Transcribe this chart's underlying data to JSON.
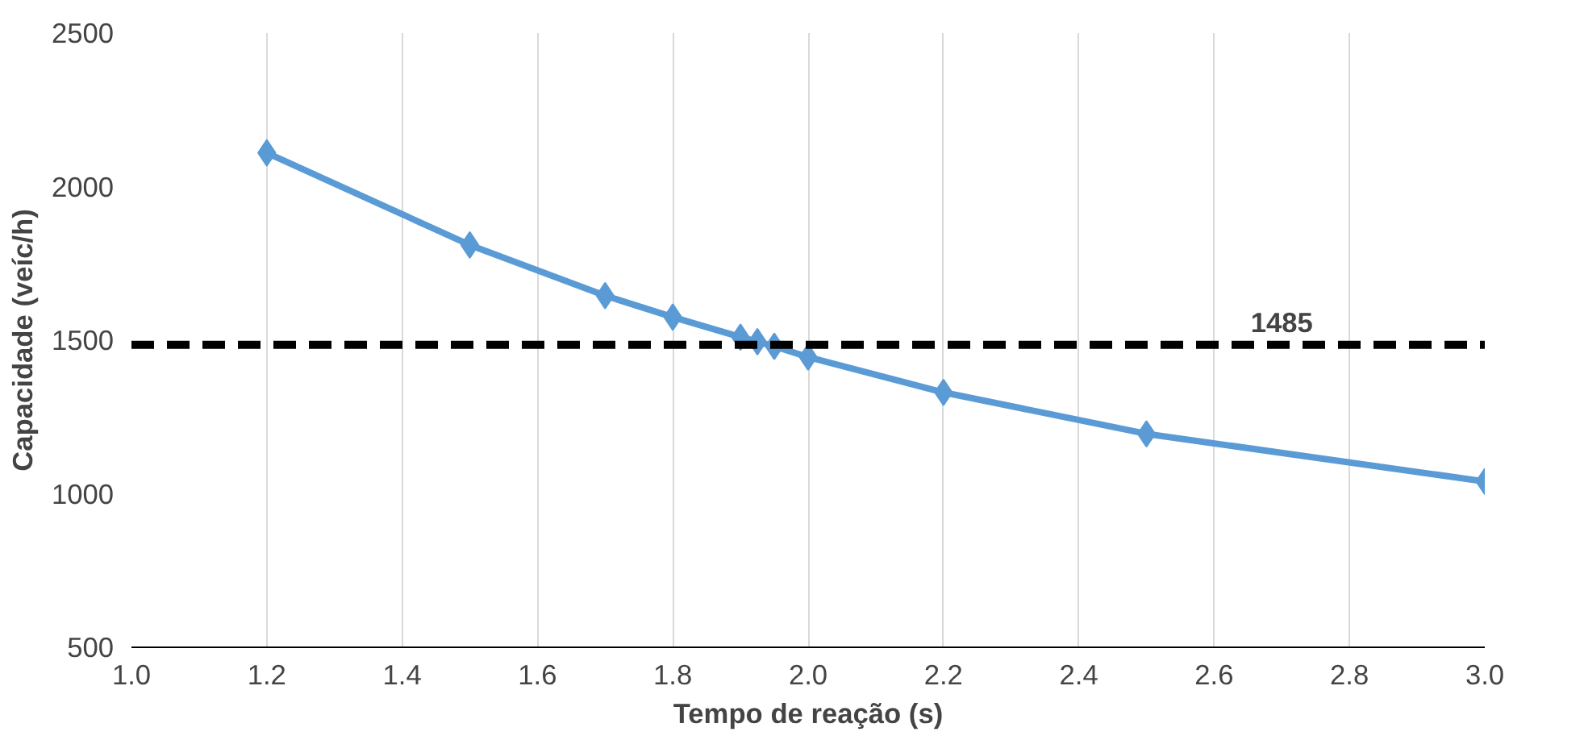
{
  "chart_data": {
    "type": "line",
    "xlabel": "Tempo de reação (s)",
    "ylabel": "Capacidade (veíc/h)",
    "x": [
      1.2,
      1.5,
      1.7,
      1.8,
      1.9,
      1.925,
      1.95,
      2.0,
      2.2,
      2.5,
      3.0
    ],
    "series": [
      {
        "color": "#5b9bd5",
        "values": [
          2110,
          1810,
          1645,
          1575,
          1510,
          1495,
          1480,
          1445,
          1330,
          1195,
          1040
        ]
      }
    ],
    "xlim": [
      1.0,
      3.0
    ],
    "xticks": [
      {
        "value": 1.0,
        "label": "1.0"
      },
      1.2,
      1.4,
      1.6,
      1.8,
      {
        "value": 2.0,
        "label": "2.0"
      },
      2.2,
      2.4,
      2.6,
      2.8,
      {
        "value": 3.0,
        "label": "3.0"
      }
    ],
    "ylim": [
      500,
      2500
    ],
    "yticks": [
      500,
      1000,
      1500,
      2000,
      2500
    ],
    "ref_lines": [
      {
        "axis": "y",
        "value": 1485,
        "label": "1485",
        "color": "#000000",
        "line_style": "dashed"
      }
    ],
    "grid": "x",
    "marker": "diamond",
    "line_style": "solid"
  }
}
